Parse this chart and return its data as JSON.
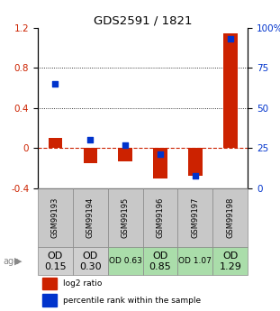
{
  "title": "GDS2591 / 1821",
  "samples": [
    "GSM99193",
    "GSM99194",
    "GSM99195",
    "GSM99196",
    "GSM99197",
    "GSM99198"
  ],
  "log2_ratio": [
    0.1,
    -0.15,
    -0.13,
    -0.3,
    -0.28,
    1.15
  ],
  "percentile_rank": [
    65,
    30,
    27,
    21,
    8,
    93
  ],
  "ylim_left": [
    -0.4,
    1.2
  ],
  "ylim_right": [
    0,
    100
  ],
  "yticks_left": [
    -0.4,
    0.0,
    0.4,
    0.8,
    1.2
  ],
  "yticks_right": [
    0,
    25,
    50,
    75,
    100
  ],
  "bar_color": "#cc2200",
  "dot_color": "#0033cc",
  "zero_line_color": "#cc2200",
  "bg_color": "white",
  "age_values": [
    "OD\n0.15",
    "OD\n0.30",
    "OD 0.63",
    "OD\n0.85",
    "OD 1.07",
    "OD\n1.29"
  ],
  "age_bg_colors": [
    "#d0d0d0",
    "#d0d0d0",
    "#aaddaa",
    "#aaddaa",
    "#aaddaa",
    "#aaddaa"
  ],
  "age_font_sizes": [
    8,
    8,
    6.5,
    8,
    6.5,
    8
  ],
  "sample_bg_color": "#c8c8c8",
  "legend_log2": "log2 ratio",
  "legend_pct": "percentile rank within the sample",
  "bar_width": 0.4
}
